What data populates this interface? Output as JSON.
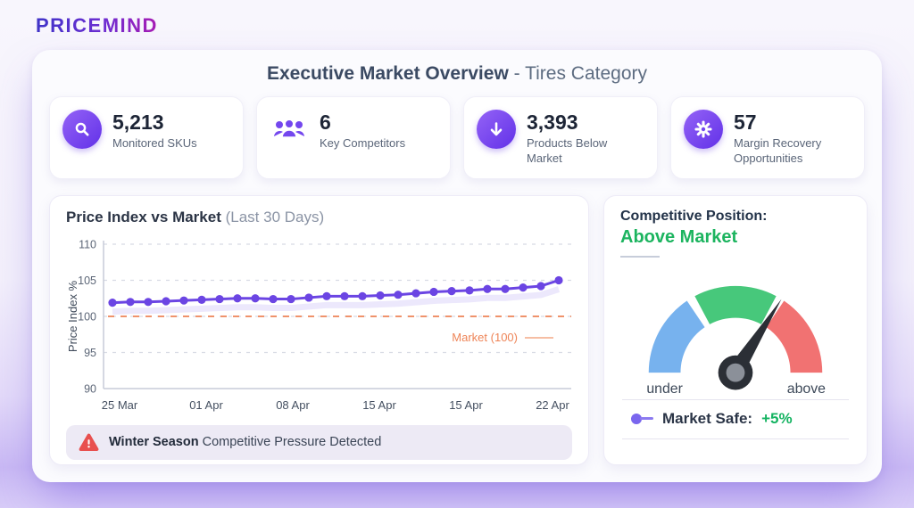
{
  "brand": {
    "logo": "PRICEMIND"
  },
  "header": {
    "title_bold": "Executive Market Overview",
    "title_rest": " - Tires Category"
  },
  "stats": [
    {
      "icon": "search-icon",
      "value": "5,213",
      "label": "Monitored SKUs"
    },
    {
      "icon": "users-icon",
      "value": "6",
      "label": "Key Competitors"
    },
    {
      "icon": "arrow-down-icon",
      "value": "3,393",
      "label": "Products Below Market"
    },
    {
      "icon": "gear-icon",
      "value": "57",
      "label": "Margin Recovery Opportunities"
    }
  ],
  "chart_card": {
    "title_bold": "Price Index vs Market",
    "title_muted": " (Last 30 Days)",
    "alert_bold": "Winter Season",
    "alert_rest": " Competitive Pressure Detected"
  },
  "chart_data": {
    "type": "line",
    "title": "Price Index vs Market (Last 30 Days)",
    "ylabel": "Price Index %",
    "ylim": [
      90,
      110
    ],
    "yticks": [
      90,
      95,
      100,
      105,
      110
    ],
    "xticks": [
      "25 Mar",
      "01 Apr",
      "08 Apr",
      "15 Apr",
      "15 Apr",
      "22 Apr"
    ],
    "grid": true,
    "series": [
      {
        "name": "Price Index",
        "color": "#6b45e3",
        "values": [
          101.9,
          102.0,
          102.0,
          102.1,
          102.2,
          102.3,
          102.4,
          102.5,
          102.5,
          102.4,
          102.4,
          102.6,
          102.8,
          102.8,
          102.8,
          102.9,
          103.0,
          103.2,
          103.4,
          103.5,
          103.6,
          103.8,
          103.8,
          104.0,
          104.2,
          105.0
        ]
      }
    ],
    "market_line": {
      "label": "Market (100)",
      "value": 100,
      "color": "#ee8457"
    }
  },
  "gauge_card": {
    "title": "Competitive Position:",
    "status": "Above Market",
    "status_color": "#1cb45f",
    "left_label": "under",
    "right_label": "above",
    "legend_label": "Market Safe:",
    "legend_value": "+5%",
    "legend_value_color": "#14b361",
    "gauge": {
      "blue": "#77b2ee",
      "green": "#47c87b",
      "red": "#f17272",
      "needle": "#2b2f36",
      "hub_inner": "#8b9099"
    }
  }
}
